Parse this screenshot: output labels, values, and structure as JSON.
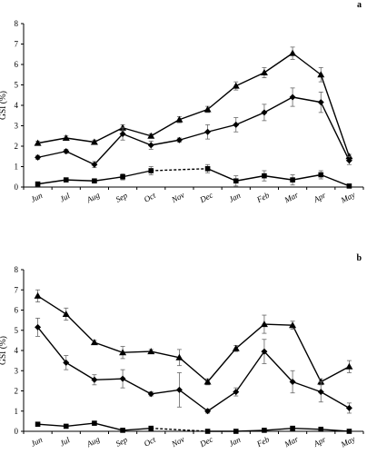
{
  "chart_data": [
    {
      "type": "line",
      "panel_label": "a",
      "ylabel": "GSI (%)",
      "ylim": [
        0,
        8
      ],
      "yticks": [
        0,
        1,
        2,
        3,
        4,
        5,
        6,
        7,
        8
      ],
      "categories": [
        "Jun",
        "Jul",
        "Aug",
        "Sep",
        "Oct",
        "Nov",
        "Dec",
        "Jan",
        "Feb",
        "Mar",
        "Apr",
        "May"
      ],
      "series": [
        {
          "marker": "triangle",
          "values": [
            2.15,
            2.4,
            2.2,
            2.9,
            2.5,
            3.3,
            3.8,
            4.95,
            5.6,
            6.55,
            5.5,
            1.5
          ],
          "errors": [
            0.1,
            0.1,
            0.1,
            0.15,
            0.1,
            0.15,
            0.15,
            0.2,
            0.25,
            0.3,
            0.35,
            0.1
          ],
          "dashed_segments": []
        },
        {
          "marker": "diamond",
          "values": [
            1.45,
            1.75,
            1.1,
            2.6,
            2.05,
            2.3,
            2.7,
            3.05,
            3.65,
            4.4,
            4.15,
            1.3
          ],
          "errors": [
            0.1,
            0.1,
            0.15,
            0.3,
            0.2,
            0.1,
            0.35,
            0.35,
            0.4,
            0.45,
            0.5,
            0.2
          ],
          "dashed_segments": []
        },
        {
          "marker": "square",
          "values": [
            0.15,
            0.35,
            0.3,
            0.5,
            0.8,
            null,
            0.9,
            0.3,
            0.55,
            0.35,
            0.6,
            0.05
          ],
          "errors": [
            0.05,
            0.1,
            0.1,
            0.15,
            0.2,
            null,
            0.2,
            0.25,
            0.25,
            0.25,
            0.2,
            0.05
          ],
          "dashed_segments": [
            [
              4,
              6
            ]
          ]
        }
      ]
    },
    {
      "type": "line",
      "panel_label": "b",
      "ylabel": "GSI (%)",
      "ylim": [
        0,
        8
      ],
      "yticks": [
        0,
        1,
        2,
        3,
        4,
        5,
        6,
        7,
        8
      ],
      "categories": [
        "Jun",
        "Jul",
        "Aug",
        "Sep",
        "Oct",
        "Nov",
        "Dec",
        "Jan",
        "Feb",
        "Mar",
        "Apr",
        "May"
      ],
      "series": [
        {
          "marker": "triangle",
          "values": [
            6.7,
            5.8,
            4.4,
            3.9,
            3.95,
            3.65,
            2.45,
            4.1,
            5.3,
            5.25,
            2.45,
            3.2
          ],
          "errors": [
            0.3,
            0.3,
            0.1,
            0.3,
            0.1,
            0.4,
            0.15,
            0.15,
            0.45,
            0.2,
            0.15,
            0.3
          ],
          "dashed_segments": []
        },
        {
          "marker": "diamond",
          "values": [
            5.15,
            3.4,
            2.55,
            2.6,
            1.85,
            2.05,
            1.0,
            1.95,
            3.95,
            2.45,
            1.95,
            1.15
          ],
          "errors": [
            0.45,
            0.35,
            0.25,
            0.45,
            0.1,
            0.85,
            0.1,
            0.2,
            0.6,
            0.55,
            0.5,
            0.25
          ],
          "dashed_segments": []
        },
        {
          "marker": "square",
          "values": [
            0.35,
            0.25,
            0.4,
            0.05,
            0.15,
            null,
            0.0,
            0.0,
            0.05,
            0.15,
            0.1,
            0.0
          ],
          "errors": [
            0.05,
            0.05,
            0.1,
            0.05,
            0.05,
            null,
            0.05,
            0.05,
            0.05,
            0.1,
            0.1,
            0.05
          ],
          "dashed_segments": [
            [
              4,
              6
            ]
          ]
        }
      ]
    }
  ]
}
